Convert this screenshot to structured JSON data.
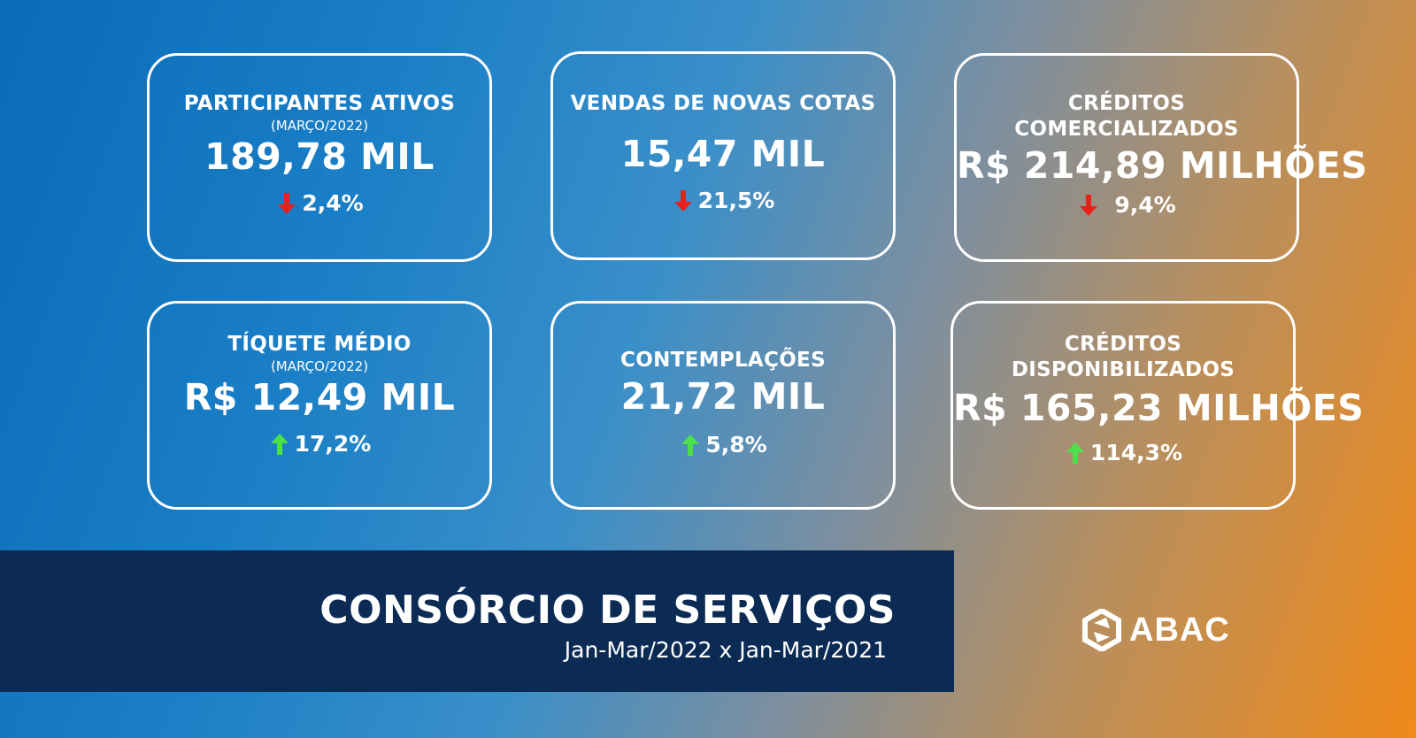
{
  "colors": {
    "down": "#e8211d",
    "up": "#4ce04a",
    "banner": "#0b2b55"
  },
  "cards": [
    {
      "title": "PARTICIPANTES ATIVOS",
      "subtitle": "(MARÇO/2022)",
      "value": "189,78 MIL",
      "change": "2,4%",
      "direction": "down"
    },
    {
      "title": "VENDAS DE NOVAS COTAS",
      "subtitle": "",
      "value": "15,47 MIL",
      "change": "21,5%",
      "direction": "down"
    },
    {
      "title_line1": "CRÉDITOS",
      "title_line2": "COMERCIALIZADOS",
      "value": "R$ 214,89 MILHÕES",
      "change": "9,4%",
      "direction": "down"
    },
    {
      "title": "TÍQUETE MÉDIO",
      "subtitle": "(MARÇO/2022)",
      "value": "R$ 12,49 MIL",
      "change": "17,2%",
      "direction": "up"
    },
    {
      "title": "CONTEMPLAÇÕES",
      "value": "21,72 MIL",
      "change": "5,8%",
      "direction": "up"
    },
    {
      "title_line1": "CRÉDITOS",
      "title_line2": "DISPONIBILIZADOS",
      "value": "R$ 165,23 MILHÕES",
      "change": "114,3%",
      "direction": "up"
    }
  ],
  "banner": {
    "title": "CONSÓRCIO DE SERVIÇOS",
    "subtitle": "Jan-Mar/2022 x Jan-Mar/2021"
  },
  "logo": {
    "text": "ABAC",
    "icon": "abac-logo-icon"
  }
}
